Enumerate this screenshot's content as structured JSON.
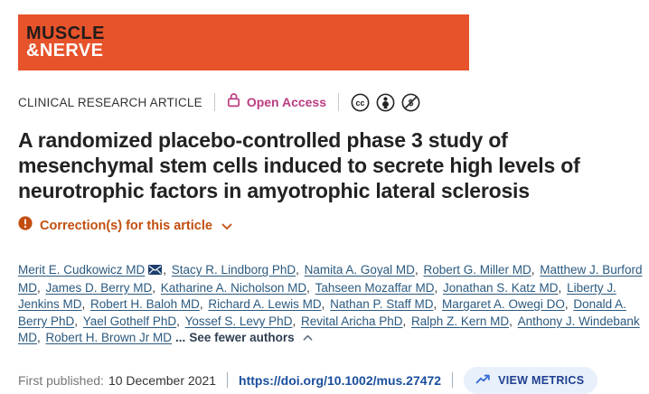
{
  "banner": {
    "line1": "MUSCLE",
    "line2": "&NERVE"
  },
  "meta": {
    "category": "CLINICAL RESEARCH ARTICLE",
    "open_access_label": "Open Access",
    "license_icons": [
      "cc",
      "cc-by",
      "cc-nc"
    ]
  },
  "title": {
    "lines": [
      "A randomized placebo-controlled phase 3 study of",
      "mesenchymal stem cells induced to secrete high levels of",
      "neurotrophic factors in amyotrophic lateral sclerosis"
    ]
  },
  "correction": {
    "label": "Correction(s) for this article"
  },
  "authors": {
    "separator": ", ",
    "ellipsis": "...",
    "see_fewer": "See fewer authors",
    "list": [
      {
        "name": "Merit E. Cudkowicz MD",
        "email": true
      },
      {
        "name": "Stacy R. Lindborg PhD"
      },
      {
        "name": "Namita A. Goyal MD"
      },
      {
        "name": "Robert G. Miller MD"
      },
      {
        "name": "Matthew J. Burford MD"
      },
      {
        "name": "James D. Berry MD"
      },
      {
        "name": "Katharine A. Nicholson MD"
      },
      {
        "name": "Tahseen Mozaffar MD"
      },
      {
        "name": "Jonathan S. Katz MD"
      },
      {
        "name": "Liberty J. Jenkins MD"
      },
      {
        "name": "Robert H. Baloh MD"
      },
      {
        "name": "Richard A. Lewis MD"
      },
      {
        "name": "Nathan P. Staff MD"
      },
      {
        "name": "Margaret A. Owegi DO"
      },
      {
        "name": "Donald A. Berry PhD"
      },
      {
        "name": "Yael Gothelf PhD"
      },
      {
        "name": "Yossef S. Levy PhD"
      },
      {
        "name": "Revital Aricha PhD"
      },
      {
        "name": "Ralph Z. Kern MD"
      },
      {
        "name": "Anthony J. Windebank MD"
      },
      {
        "name": "Robert H. Brown Jr MD"
      }
    ]
  },
  "footer": {
    "published_label": "First published:",
    "published_date": "10 December 2021",
    "doi": "https://doi.org/10.1002/mus.27472",
    "metrics_label": "VIEW METRICS"
  },
  "colors": {
    "banner": "#e7532b",
    "banner_text": "#221d1a",
    "pink": "#bc3c82",
    "correction": "#c24e10",
    "link": "#2b5a80",
    "see_fewer": "#2f3f52",
    "doi": "#1a4f9e",
    "metrics_bg": "#e8f0fb",
    "metrics_text": "#1f3f8f",
    "metrics_icon": "#3a6fd8",
    "title": "#222222",
    "text": "#333333",
    "muted": "#767676"
  }
}
